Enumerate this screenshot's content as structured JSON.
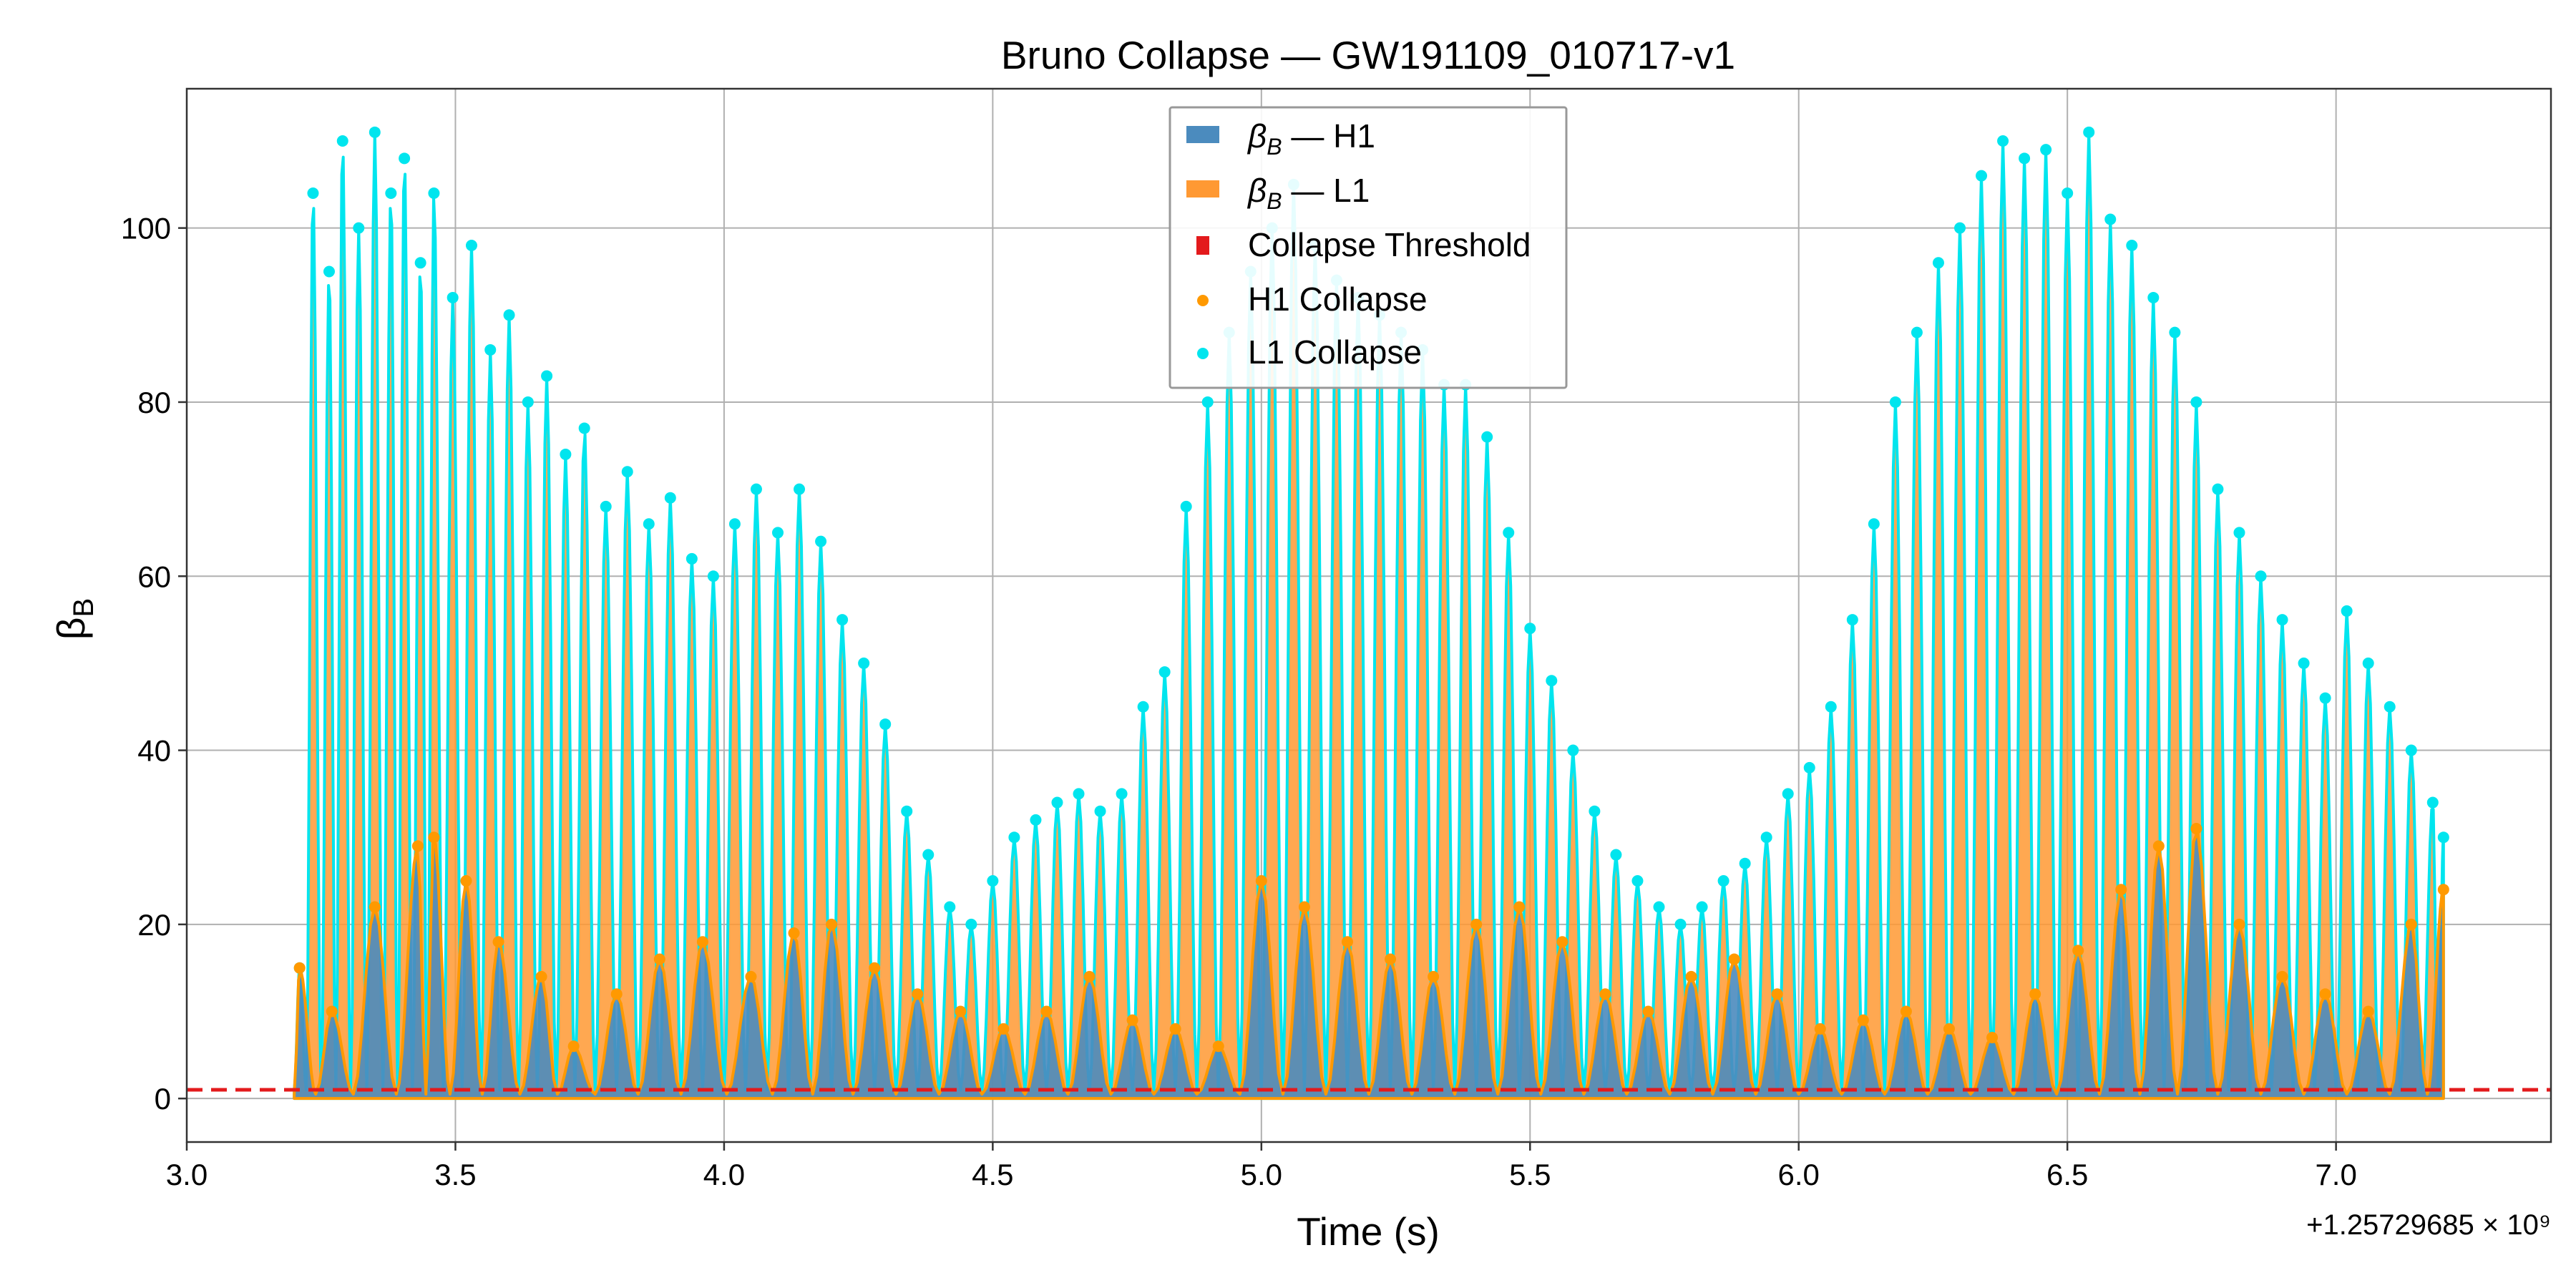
{
  "chart_data": {
    "type": "line",
    "title": "Bruno Collapse — GW191109_010717-v1",
    "xlabel": "Time (s)",
    "ylabel_symbol": "β",
    "ylabel_subscript": "B",
    "x_offset_text": "+1.25729685 × 10⁹",
    "xlim": [
      3.0,
      7.4
    ],
    "ylim": [
      -5,
      116
    ],
    "x_ticks": [
      "3.0",
      "3.5",
      "4.0",
      "4.5",
      "5.0",
      "5.5",
      "6.0",
      "6.5",
      "7.0"
    ],
    "x_tick_values": [
      3.0,
      3.5,
      4.0,
      4.5,
      5.0,
      5.5,
      6.0,
      6.5,
      7.0
    ],
    "y_ticks": [
      "0",
      "20",
      "40",
      "60",
      "80",
      "100"
    ],
    "y_tick_values": [
      0,
      20,
      40,
      60,
      80,
      100
    ],
    "grid": true,
    "legend_position": "top-center",
    "threshold": 1.0,
    "series": [
      {
        "name": "β_B — H1",
        "legend_symbol": "β",
        "legend_subscript": "B",
        "legend_suffix": " — H1",
        "color": "#4b8bbe",
        "peak_times": [
          3.21,
          3.27,
          3.35,
          3.43,
          3.46,
          3.52,
          3.58,
          3.66,
          3.72,
          3.8,
          3.88,
          3.96,
          4.05,
          4.13,
          4.2,
          4.28,
          4.36,
          4.44,
          4.52,
          4.6,
          4.68,
          4.76,
          4.84,
          4.92,
          5.0,
          5.08,
          5.16,
          5.24,
          5.32,
          5.4,
          5.48,
          5.56,
          5.64,
          5.72,
          5.8,
          5.88,
          5.96,
          6.04,
          6.12,
          6.2,
          6.28,
          6.36,
          6.44,
          6.52,
          6.6,
          6.67,
          6.74,
          6.82,
          6.9,
          6.98,
          7.06,
          7.14,
          7.2
        ],
        "peak_values": [
          15,
          10,
          22,
          29,
          30,
          25,
          18,
          14,
          6,
          12,
          16,
          18,
          14,
          19,
          20,
          15,
          12,
          10,
          8,
          10,
          14,
          9,
          8,
          6,
          25,
          22,
          18,
          16,
          14,
          20,
          22,
          18,
          12,
          10,
          14,
          16,
          12,
          8,
          9,
          10,
          8,
          7,
          12,
          17,
          24,
          29,
          31,
          20,
          14,
          12,
          10,
          20,
          24
        ]
      },
      {
        "name": "β_B — L1",
        "legend_symbol": "β",
        "legend_subscript": "B",
        "legend_suffix": " — L1",
        "color": "#ff9933",
        "peak_times": [
          3.21,
          3.235,
          3.265,
          3.29,
          3.32,
          3.35,
          3.38,
          3.405,
          3.435,
          3.46,
          3.495,
          3.53,
          3.565,
          3.6,
          3.635,
          3.67,
          3.705,
          3.74,
          3.78,
          3.82,
          3.86,
          3.9,
          3.94,
          3.98,
          4.02,
          4.06,
          4.1,
          4.14,
          4.18,
          4.22,
          4.26,
          4.3,
          4.34,
          4.38,
          4.42,
          4.46,
          4.5,
          4.54,
          4.58,
          4.62,
          4.66,
          4.7,
          4.74,
          4.78,
          4.82,
          4.86,
          4.9,
          4.94,
          4.98,
          5.02,
          5.06,
          5.1,
          5.14,
          5.18,
          5.22,
          5.26,
          5.3,
          5.34,
          5.38,
          5.42,
          5.46,
          5.5,
          5.54,
          5.58,
          5.62,
          5.66,
          5.7,
          5.74,
          5.78,
          5.82,
          5.86,
          5.9,
          5.94,
          5.98,
          6.02,
          6.06,
          6.1,
          6.14,
          6.18,
          6.22,
          6.26,
          6.3,
          6.34,
          6.38,
          6.42,
          6.46,
          6.5,
          6.54,
          6.58,
          6.62,
          6.66,
          6.7,
          6.74,
          6.78,
          6.82,
          6.86,
          6.9,
          6.94,
          6.98,
          7.02,
          7.06,
          7.1,
          7.14,
          7.18,
          7.2
        ],
        "peak_values": [
          15,
          104,
          95,
          110,
          100,
          111,
          104,
          108,
          96,
          104,
          92,
          98,
          86,
          90,
          80,
          83,
          74,
          77,
          68,
          72,
          66,
          69,
          62,
          60,
          66,
          70,
          65,
          70,
          64,
          55,
          50,
          43,
          33,
          28,
          22,
          20,
          25,
          30,
          32,
          34,
          35,
          33,
          35,
          45,
          49,
          68,
          80,
          88,
          95,
          100,
          105,
          98,
          94,
          92,
          90,
          88,
          86,
          82,
          82,
          76,
          65,
          54,
          48,
          40,
          33,
          28,
          25,
          22,
          20,
          22,
          25,
          27,
          30,
          35,
          38,
          45,
          55,
          66,
          80,
          88,
          96,
          100,
          106,
          110,
          108,
          109,
          104,
          111,
          101,
          98,
          92,
          88,
          80,
          70,
          65,
          60,
          55,
          50,
          46,
          56,
          50,
          45,
          40,
          34,
          30
        ]
      },
      {
        "name": "Collapse Threshold",
        "color": "#e31a1c",
        "style": "dashed",
        "y": 1.0
      },
      {
        "name": "H1 Collapse",
        "color": "#ff9900",
        "style": "markers"
      },
      {
        "name": "L1 Collapse",
        "color": "#00e5ee",
        "style": "markers"
      }
    ],
    "time_start": 3.2,
    "time_end": 7.2
  }
}
